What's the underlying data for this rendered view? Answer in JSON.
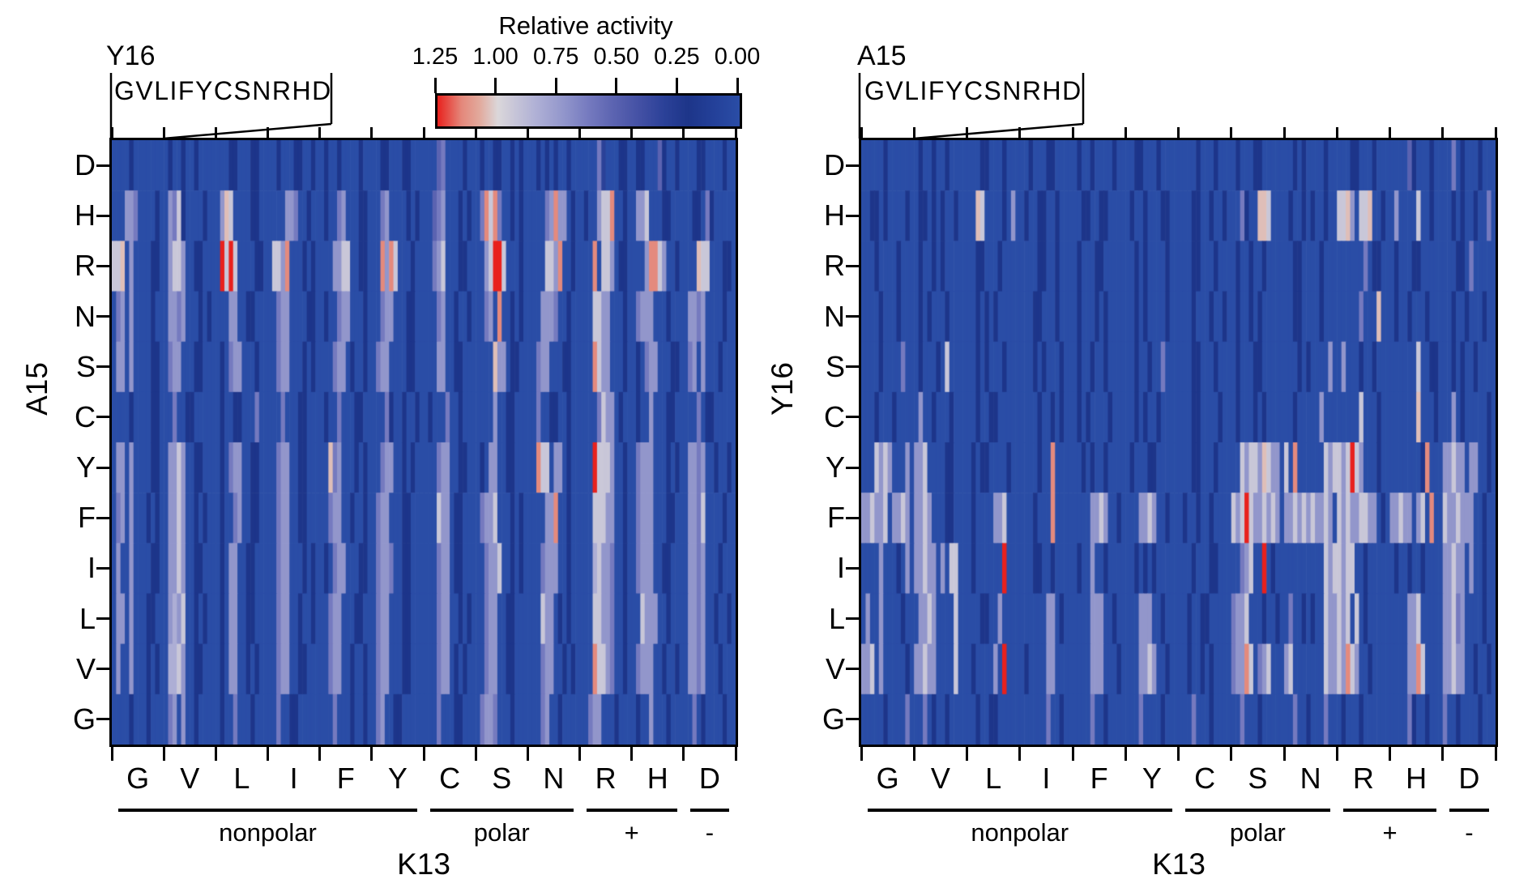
{
  "figure": {
    "colorbar": {
      "title": "Relative activity",
      "tick_labels": [
        "1.25",
        "1.00",
        "0.75",
        "0.50",
        "0.25",
        "0.00"
      ]
    },
    "panels": [
      {
        "top_axis_label": "Y16",
        "sub_sequence": "GVLIFYCSNRHD",
        "y_axis_label": "A15",
        "x_axis_label": "K13",
        "row_labels": [
          "D",
          "H",
          "R",
          "N",
          "S",
          "C",
          "Y",
          "F",
          "I",
          "L",
          "V",
          "G"
        ],
        "group_labels": [
          "G",
          "V",
          "L",
          "I",
          "F",
          "Y",
          "C",
          "S",
          "N",
          "R",
          "H",
          "D"
        ],
        "categories": [
          {
            "label": "nonpolar",
            "start": 0,
            "end": 6
          },
          {
            "label": "polar",
            "start": 6,
            "end": 9
          },
          {
            "label": "+",
            "start": 9,
            "end": 11
          },
          {
            "label": "-",
            "start": 11,
            "end": 12
          }
        ]
      },
      {
        "top_axis_label": "A15",
        "sub_sequence": "GVLIFYCSNRHD",
        "y_axis_label": "Y16",
        "x_axis_label": "K13",
        "row_labels": [
          "D",
          "H",
          "R",
          "N",
          "S",
          "C",
          "Y",
          "F",
          "I",
          "L",
          "V",
          "G"
        ],
        "group_labels": [
          "G",
          "V",
          "L",
          "I",
          "F",
          "Y",
          "C",
          "S",
          "N",
          "R",
          "H",
          "D"
        ],
        "categories": [
          {
            "label": "nonpolar",
            "start": 0,
            "end": 6
          },
          {
            "label": "polar",
            "start": 6,
            "end": 9
          },
          {
            "label": "+",
            "start": 9,
            "end": 11
          },
          {
            "label": "-",
            "start": 11,
            "end": 12
          }
        ]
      }
    ]
  },
  "chart_data": {
    "type": "heatmap",
    "title": "Relative activity",
    "value_scale": {
      "min": 0.0,
      "max": 1.25
    },
    "value_encoding": "each cell char in 0123456789abc maps to relative activity = index/12 * 1.25",
    "colorbar_ticks": [
      1.25,
      1.0,
      0.75,
      0.5,
      0.25,
      0.0
    ],
    "colormap": {
      "stops": [
        {
          "p": 0.0,
          "color": "#2a4da6"
        },
        {
          "p": 0.08,
          "color": "#24419a"
        },
        {
          "p": 0.17,
          "color": "#1d3589"
        },
        {
          "p": 0.25,
          "color": "#2b4198"
        },
        {
          "p": 0.33,
          "color": "#4350a4"
        },
        {
          "p": 0.42,
          "color": "#5c64b1"
        },
        {
          "p": 0.5,
          "color": "#757abf"
        },
        {
          "p": 0.58,
          "color": "#9195cb"
        },
        {
          "p": 0.67,
          "color": "#aeafd5"
        },
        {
          "p": 0.75,
          "color": "#c9c7d8"
        },
        {
          "p": 0.8,
          "color": "#dbd7da"
        },
        {
          "p": 0.86,
          "color": "#e2aa9d"
        },
        {
          "p": 0.92,
          "color": "#e4887b"
        },
        {
          "p": 1.0,
          "color": "#e8211d"
        }
      ]
    },
    "panels": [
      {
        "name": "A15 x K13 (sub-columns Y16)",
        "row_labels": [
          "D",
          "H",
          "R",
          "N",
          "S",
          "C",
          "Y",
          "F",
          "I",
          "L",
          "V",
          "G"
        ],
        "col_groups": [
          "G",
          "V",
          "L",
          "I",
          "F",
          "Y",
          "C",
          "S",
          "N",
          "R",
          "H",
          "D"
        ],
        "sub_columns": "GVLIFYCSNRHD",
        "rows": [
          [
            "000020000000",
            "020020020000",
            "000220002200",
            "002000220020",
            "020020000200",
            "002200022000",
            "000560000200",
            "020022002020",
            "002020200200",
            "000063000220",
            "022000520020",
            "000220000200"
          ],
          [
            "000776000020",
            "076920000200",
            "07a900002200",
            "000077600200",
            "020067000220",
            "006700002020",
            "005670002020",
            "06b9b6002020",
            "000067b77020",
            "0200799b0020",
            "077900022000",
            "002206200000"
          ],
          [
            "99a070000220",
            "079970022000",
            "0c9c90000220",
            "0997b0002020",
            "000779900220",
            "00b7b9000200",
            "006790002200",
            "0079cc900020",
            "0000997b0020",
            "000b09970220",
            "0007bb970020",
            "000a99000220"
          ],
          [
            "067070000200",
            "077670002020",
            "000770022000",
            "006770000220",
            "020067700020",
            "006770002200",
            "000670020020",
            "00670b002020",
            "000777600200",
            "000997700020",
            "067770002000",
            "077670000200"
          ],
          [
            "077070000220",
            "067700022000",
            "020677000200",
            "006770002020",
            "000677020020",
            "067700002200",
            "000770022000",
            "0000a7702200",
            "006770002200",
            "000b97700020",
            "020677000220",
            "067070002000"
          ],
          [
            "000020000220",
            "006002200000",
            "020022000600",
            "000600022000",
            "020060002200",
            "000620020020",
            "020006002000",
            "000070022000",
            "006002200200",
            "000069770200",
            "020070002200",
            "000602200000"
          ],
          [
            "077070000220",
            "077970022000",
            "020677002200",
            "006770022000",
            "00a670002020",
            "006770020200",
            "000677002200",
            "020770022000",
            "00b990770200",
            "000c99970020",
            "067770002020",
            "077670020020"
          ],
          [
            "067070002020",
            "077970020200",
            "020067002200",
            "006770022000",
            "006770020020",
            "067700022000",
            "000977022000",
            "067790002020",
            "000077b00200",
            "000999770020",
            "067770002200",
            "077690000200"
          ],
          [
            "070070000220",
            "077970022000",
            "020770022000",
            "006770002020",
            "020677000220",
            "067760022000",
            "000677022000",
            "006779002020",
            "000677700200",
            "000897760020",
            "067770022000",
            "077670002000"
          ],
          [
            "077070002200",
            "078790020200",
            "020770022000",
            "006770020020",
            "006770002200",
            "067700022000",
            "000677002020",
            "006770022000",
            "000977020200",
            "000997760020",
            "009777002000",
            "077670020020"
          ],
          [
            "070070002020",
            "088970022000",
            "020770020200",
            "006770022000",
            "006770020020",
            "067700022000",
            "000677020200",
            "006770022000",
            "000677002020",
            "000b99760020",
            "067770020020",
            "077670002000"
          ],
          [
            "000020002000",
            "067070020000",
            "020060002000",
            "006002200000",
            "000600020020",
            "067002200000",
            "000600022000",
            "067760002000",
            "000670020000",
            "006770002000",
            "020070002000",
            "006020000200"
          ]
        ]
      },
      {
        "name": "Y16 x K13 (sub-columns A15)",
        "row_labels": [
          "D",
          "H",
          "R",
          "N",
          "S",
          "C",
          "Y",
          "F",
          "I",
          "L",
          "V",
          "G"
        ],
        "col_groups": [
          "G",
          "V",
          "L",
          "I",
          "F",
          "Y",
          "C",
          "S",
          "N",
          "R",
          "H",
          "D"
        ],
        "sub_columns": "GVLIFYCSNRHD",
        "rows": [
          [
            "000002000000",
            "020020020000",
            "000220002000",
            "002000220000",
            "020020000200",
            "002200020000",
            "000020002000",
            "020002200000",
            "002020000200",
            "000220002000",
            "000052000200",
            "006020002000"
          ],
          [
            "002202000020",
            "022020200200",
            "00a900002070",
            "020022002000",
            "002200220000",
            "020020002200",
            "000220020020",
            "006200aa9000",
            "020020200200",
            "99a7099a0020",
            "070000900200",
            "002020020060"
          ],
          [
            "000200002000",
            "020020200000",
            "002200020000",
            "000022002000",
            "020002200000",
            "002020000200",
            "000220002000",
            "020020020000",
            "002200002000",
            "000000602200",
            "020002200000",
            "000220600000"
          ],
          [
            "000020002000",
            "020200020000",
            "002020200000",
            "000220002000",
            "020002020000",
            "002020000200",
            "000200020020",
            "020020200000",
            "002200002000",
            "000006000a00",
            "020020002000",
            "002002000200"
          ],
          [
            "000020000600",
            "020002090000",
            "002020002000",
            "000202000200",
            "020020020000",
            "002002006000",
            "000220002000",
            "020002200000",
            "000202000070",
            "070002002000",
            "000000900220",
            "002020020000"
          ],
          [
            "000200020000",
            "070020002000",
            "002002200000",
            "000020020200",
            "020200002000",
            "002020020000",
            "000220000200",
            "020002020000",
            "002000007000",
            "000009000200",
            "000000a00020",
            "007020000020"
          ],
          [
            "000979700070",
            "779000022000",
            "020220000200",
            "0000200b0000",
            "002020020000",
            "020002200000",
            "000220002000",
            "0097997a9770",
            "90b000000979",
            "979c97000200",
            "00000002b000",
            "779770770020"
          ],
          [
            "779779077970",
            "779700022000",
            "020000779000",
            "0002000b0000",
            "000077970020",
            "000779700200",
            "020020020000",
            "979c97797970",
            "779797977970",
            "979779977020",
            "779770790b00",
            "977977700200"
          ],
          [
            "000070002070",
            "779770709900",
            "02000000c000",
            "000220020000",
            "020070020000",
            "002020200000",
            "000200022000",
            "0067900c0200",
            "000000000979",
            "979900200000",
            "020020020000",
            "779770700200"
          ],
          [
            "070070000200",
            "077970000900",
            "000220070000",
            "000000770200",
            "000077700200",
            "000777002000",
            "002002200000",
            "677900020020",
            "060020200977",
            "979090200000",
            "000077900000",
            "779670000200"
          ],
          [
            "779070000020",
            "779770000900",
            "02000070c000",
            "020000770000",
            "000077700020",
            "000779700200",
            "002002020000",
            "677b90679000",
            "790000000977",
            "97b970020000",
            "000077b90000",
            "779770020020"
          ],
          [
            "000002000060",
            "006020020000",
            "002002200000",
            "000000600200",
            "000060020000",
            "000600002000",
            "000600020000",
            "006000200000",
            "006002000600",
            "020002000000",
            "000062002000",
            "600200002000"
          ]
        ]
      }
    ]
  }
}
